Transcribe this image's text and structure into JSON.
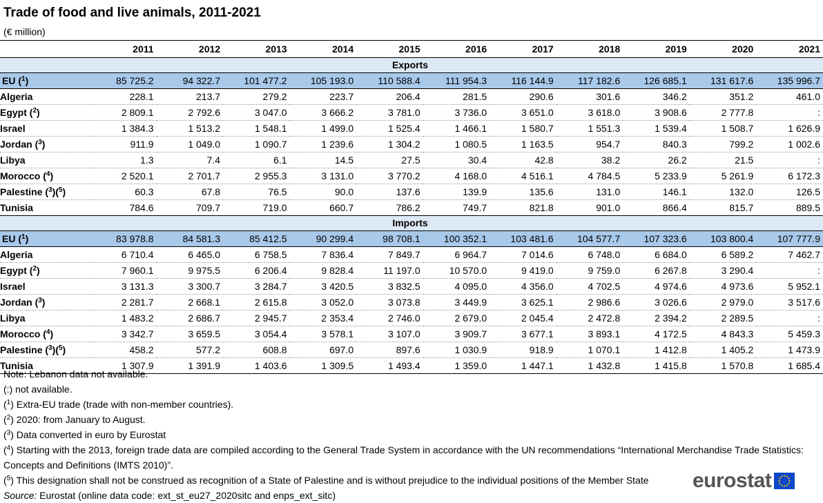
{
  "title": "Trade of food and live animals, 2011-2021",
  "unit": "(€ million)",
  "years": [
    "2011",
    "2012",
    "2013",
    "2014",
    "2015",
    "2016",
    "2017",
    "2018",
    "2019",
    "2020",
    "2021"
  ],
  "exports": {
    "label": "Exports",
    "rows": [
      {
        "name": "EU (¹)",
        "values": [
          "85 725.2",
          "94 322.7",
          "101 477.2",
          "105 193.0",
          "110 588.4",
          "111 954.3",
          "116 144.9",
          "117 182.6",
          "126 685.1",
          "131 617.6",
          "135 996.7"
        ]
      },
      {
        "name": "Algeria",
        "values": [
          "228.1",
          "213.7",
          "279.2",
          "223.7",
          "206.4",
          "281.5",
          "290.6",
          "301.6",
          "346.2",
          "351.2",
          "461.0"
        ]
      },
      {
        "name": "Egypt (²)",
        "values": [
          "2 809.1",
          "2 792.6",
          "3 047.0",
          "3 666.2",
          "3 781.0",
          "3 736.0",
          "3 651.0",
          "3 618.0",
          "3 908.6",
          "2 777.8",
          ":"
        ]
      },
      {
        "name": "Israel",
        "values": [
          "1 384.3",
          "1 513.2",
          "1 548.1",
          "1 499.0",
          "1 525.4",
          "1 466.1",
          "1 580.7",
          "1 551.3",
          "1 539.4",
          "1 508.7",
          "1 626.9"
        ]
      },
      {
        "name": "Jordan (³)",
        "values": [
          "911.9",
          "1 049.0",
          "1 090.7",
          "1 239.6",
          "1 304.2",
          "1 080.5",
          "1 163.5",
          "954.7",
          "840.3",
          "799.2",
          "1 002.6"
        ]
      },
      {
        "name": "Libya",
        "values": [
          "1.3",
          "7.4",
          "6.1",
          "14.5",
          "27.5",
          "30.4",
          "42.8",
          "38.2",
          "26.2",
          "21.5",
          ":"
        ]
      },
      {
        "name": "Morocco (⁴)",
        "values": [
          "2 520.1",
          "2 701.7",
          "2 955.3",
          "3 131.0",
          "3 770.2",
          "4 168.0",
          "4 516.1",
          "4 784.5",
          "5 233.9",
          "5 261.9",
          "6 172.3"
        ]
      },
      {
        "name": "Palestine (³)(⁵)",
        "values": [
          "60.3",
          "67.8",
          "76.5",
          "90.0",
          "137.6",
          "139.9",
          "135.6",
          "131.0",
          "146.1",
          "132.0",
          "126.5"
        ]
      },
      {
        "name": "Tunisia",
        "values": [
          "784.6",
          "709.7",
          "719.0",
          "660.7",
          "786.2",
          "749.7",
          "821.8",
          "901.0",
          "866.4",
          "815.7",
          "889.5"
        ]
      }
    ]
  },
  "imports": {
    "label": "Imports",
    "rows": [
      {
        "name": "EU (¹)",
        "values": [
          "83 978.8",
          "84 581.3",
          "85 412.5",
          "90 299.4",
          "98 708.1",
          "100 352.1",
          "103 481.6",
          "104 577.7",
          "107 323.6",
          "103 800.4",
          "107 777.9"
        ]
      },
      {
        "name": "Algeria",
        "values": [
          "6 710.4",
          "6 465.0",
          "6 758.5",
          "7 836.4",
          "7 849.7",
          "6 964.7",
          "7 014.6",
          "6 748.0",
          "6 684.0",
          "6 589.2",
          "7 462.7"
        ]
      },
      {
        "name": "Egypt (²)",
        "values": [
          "7 960.1",
          "9 975.5",
          "6 206.4",
          "9 828.4",
          "11 197.0",
          "10 570.0",
          "9 419.0",
          "9 759.0",
          "6 267.8",
          "3 290.4",
          ":"
        ]
      },
      {
        "name": "Israel",
        "values": [
          "3 131.3",
          "3 300.7",
          "3 284.7",
          "3 420.5",
          "3 832.5",
          "4 095.0",
          "4 356.0",
          "4 702.5",
          "4 974.6",
          "4 973.6",
          "5 952.1"
        ]
      },
      {
        "name": "Jordan (³)",
        "values": [
          "2 281.7",
          "2 668.1",
          "2 615.8",
          "3 052.0",
          "3 073.8",
          "3 449.9",
          "3 625.1",
          "2 986.6",
          "3 026.6",
          "2 979.0",
          "3 517.6"
        ]
      },
      {
        "name": "Libya",
        "values": [
          "1 483.2",
          "2 686.7",
          "2 945.7",
          "2 353.4",
          "2 746.0",
          "2 679.0",
          "2 045.4",
          "2 472.8",
          "2 394.2",
          "2 289.5",
          ":"
        ]
      },
      {
        "name": "Morocco (⁴)",
        "values": [
          "3 342.7",
          "3 659.5",
          "3 054.4",
          "3 578.1",
          "3 107.0",
          "3 909.7",
          "3 677.1",
          "3 893.1",
          "4 172.5",
          "4 843.3",
          "5 459.3"
        ]
      },
      {
        "name": "Palestine (³)(⁵)",
        "values": [
          "458.2",
          "577.2",
          "608.8",
          "697.0",
          "897.6",
          "1 030.9",
          "918.9",
          "1 070.1",
          "1 412.8",
          "1 405.2",
          "1 473.9"
        ]
      },
      {
        "name": "Tunisia",
        "values": [
          "1 307.9",
          "1 391.9",
          "1 403.6",
          "1 309.5",
          "1 493.4",
          "1 359.0",
          "1 447.1",
          "1 432.8",
          "1 415.8",
          "1 570.8",
          "1 685.4"
        ]
      }
    ]
  },
  "notes": [
    "Note: Lebanon data not available.",
    "(:) not available.",
    "(¹) Extra-EU trade (trade with non-member countries).",
    "(²) 2020: from January to August.",
    "(³) Data converted in euro by Eurostat",
    "(⁴) Starting with the 2013, foreign trade data are compiled according to the General Trade System in accordance with the UN recommendations “International Merchandise Trade Statistics: Concepts and Definitions (IMTS 2010)”.",
    "(⁵) This designation shall not be construed as recognition of a State of Palestine and is without prejudice to the individual positions of the Member State"
  ],
  "source": {
    "label": "Source:",
    "text": "Eurostat (online data code: ext_st_eu27_2020sitc and enps_ext_sitc)"
  },
  "logo": {
    "text": "eurostat",
    "icon": "eu-flag-icon",
    "color": "#0e47cb"
  }
}
